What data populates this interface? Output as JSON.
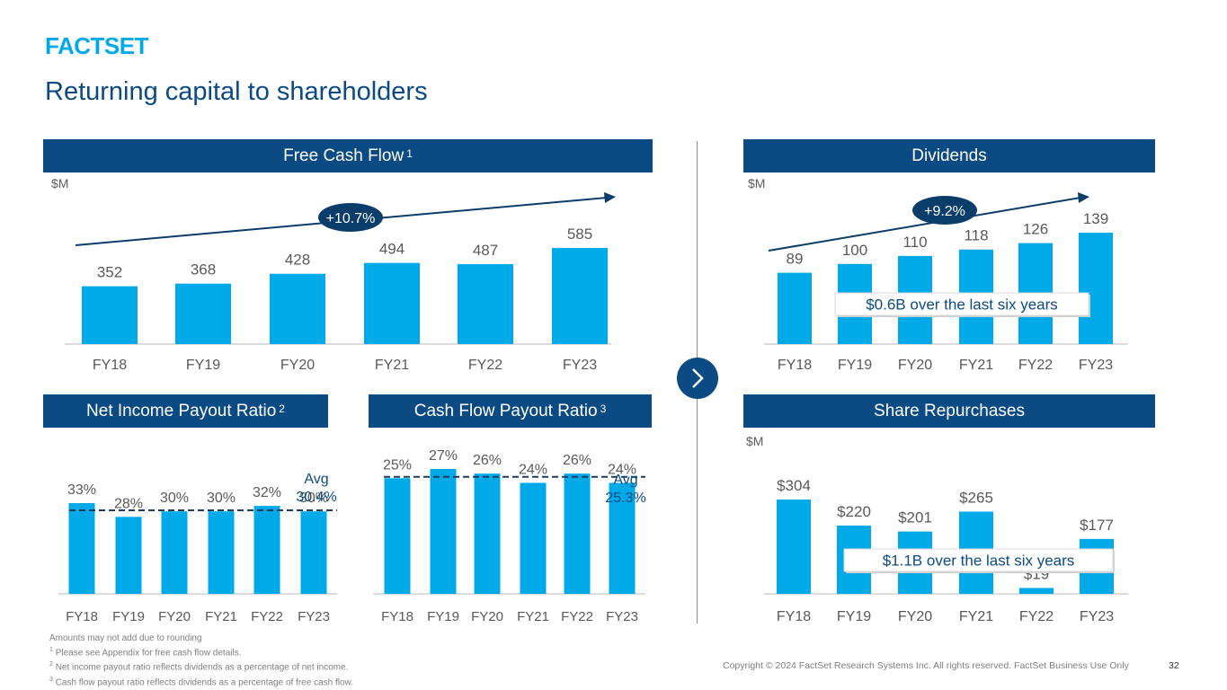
{
  "brand": {
    "logo_text": "FACTSET",
    "color": "#0b4a82",
    "accent": "#00a9e8"
  },
  "page": {
    "title": "Returning capital to shareholders",
    "page_number": "32"
  },
  "chart_data": [
    {
      "id": "fcf",
      "type": "bar",
      "title": "Free Cash Flow",
      "title_footnote": "1",
      "unit": "$M",
      "categories": [
        "FY18",
        "FY19",
        "FY20",
        "FY21",
        "FY22",
        "FY23"
      ],
      "values": [
        352,
        368,
        428,
        494,
        487,
        585
      ],
      "value_labels": [
        "352",
        "368",
        "428",
        "494",
        "487",
        "585"
      ],
      "ylim": [
        0,
        585
      ],
      "annotation": "+10.7%"
    },
    {
      "id": "div",
      "type": "bar",
      "title": "Dividends",
      "unit": "$M",
      "categories": [
        "FY18",
        "FY19",
        "FY20",
        "FY21",
        "FY22",
        "FY23"
      ],
      "values": [
        89,
        100,
        110,
        118,
        126,
        139
      ],
      "value_labels": [
        "89",
        "100",
        "110",
        "118",
        "126",
        "139"
      ],
      "ylim": [
        0,
        139
      ],
      "annotation": "+9.2%",
      "callout": "$0.6B over the last six years"
    },
    {
      "id": "nipr",
      "type": "bar",
      "title": "Net Income Payout Ratio",
      "title_footnote": "2",
      "categories": [
        "FY18",
        "FY19",
        "FY20",
        "FY21",
        "FY22",
        "FY23"
      ],
      "values": [
        33,
        28,
        30,
        30,
        32,
        30
      ],
      "value_labels": [
        "33%",
        "28%",
        "30%",
        "30%",
        "32%",
        "30%"
      ],
      "ylim": [
        0,
        33
      ],
      "average": 30.4,
      "average_label": [
        "Avg",
        "30.4%"
      ]
    },
    {
      "id": "cfpr",
      "type": "bar",
      "title": "Cash Flow Payout Ratio",
      "title_footnote": "3",
      "categories": [
        "FY18",
        "FY19",
        "FY20",
        "FY21",
        "FY22",
        "FY23"
      ],
      "values": [
        25,
        27,
        26,
        24,
        26,
        24
      ],
      "value_labels": [
        "25%",
        "27%",
        "26%",
        "24%",
        "26%",
        "24%"
      ],
      "ylim": [
        0,
        27
      ],
      "average": 25.3,
      "average_label": [
        "Avg",
        "25.3%"
      ]
    },
    {
      "id": "rep",
      "type": "bar",
      "title": "Share Repurchases",
      "unit": "$M",
      "categories": [
        "FY18",
        "FY19",
        "FY20",
        "FY21",
        "FY22",
        "FY23"
      ],
      "values": [
        304,
        220,
        201,
        265,
        19,
        177
      ],
      "value_labels": [
        "$304",
        "$220",
        "$201",
        "$265",
        "$19",
        "$177"
      ],
      "ylim": [
        0,
        304
      ],
      "callout": "$1.1B over the last six years"
    }
  ],
  "footnotes": {
    "line0": "Amounts may not add due to rounding",
    "line1_marker": "1",
    "line1": "Please see Appendix for free cash flow details.",
    "line2_marker": "2",
    "line2": "Net income payout ratio reflects dividends as a percentage of net income.",
    "line3_marker": "3",
    "line3": "Cash flow payout ratio reflects dividends as a percentage of free cash flow."
  },
  "copyright": "Copyright © 2024 FactSet Research Systems Inc. All rights reserved. FactSet Business Use Only",
  "icons": {
    "next": "chevron-right-icon"
  }
}
